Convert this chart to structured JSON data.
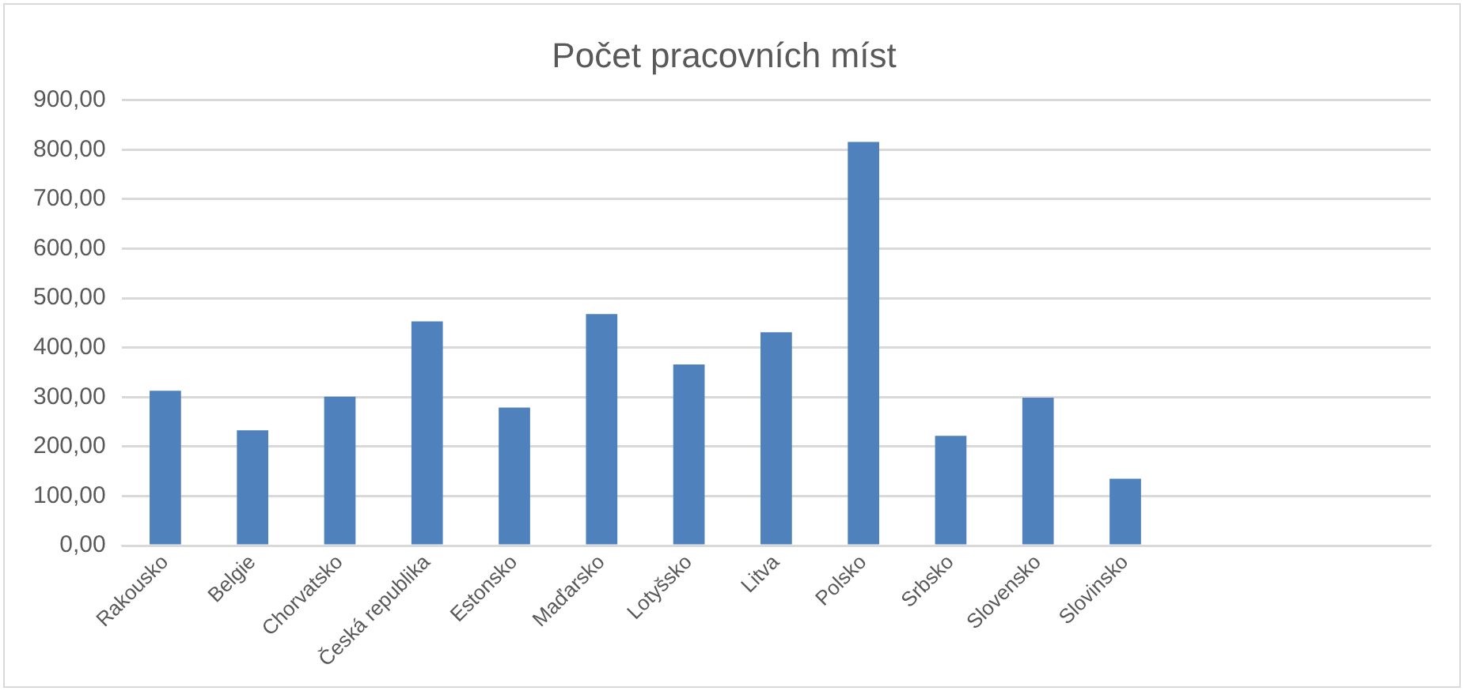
{
  "chart_data": {
    "type": "bar",
    "title": "Počet pracovních míst",
    "categories": [
      "Rakousko",
      "Belgie",
      "Chorvatsko",
      "Česká republika",
      "Estonsko",
      "Maďarsko",
      "Lotyšsko",
      "Litva",
      "Polsko",
      "Srbsko",
      "Slovensko",
      "Slovinsko",
      null,
      null,
      null
    ],
    "values": [
      313,
      233,
      301,
      453,
      279,
      468,
      366,
      431,
      816,
      222,
      299,
      135,
      null,
      null,
      null
    ],
    "color": "#4f81bd",
    "ylim": [
      0,
      900
    ],
    "yticks": [
      {
        "value": 0,
        "label": "0,00"
      },
      {
        "value": 100,
        "label": "100,00"
      },
      {
        "value": 200,
        "label": "200,00"
      },
      {
        "value": 300,
        "label": "300,00"
      },
      {
        "value": 400,
        "label": "400,00"
      },
      {
        "value": 500,
        "label": "500,00"
      },
      {
        "value": 600,
        "label": "600,00"
      },
      {
        "value": 700,
        "label": "700,00"
      },
      {
        "value": 800,
        "label": "800,00"
      },
      {
        "value": 900,
        "label": "900,00"
      }
    ],
    "grid": "y"
  }
}
